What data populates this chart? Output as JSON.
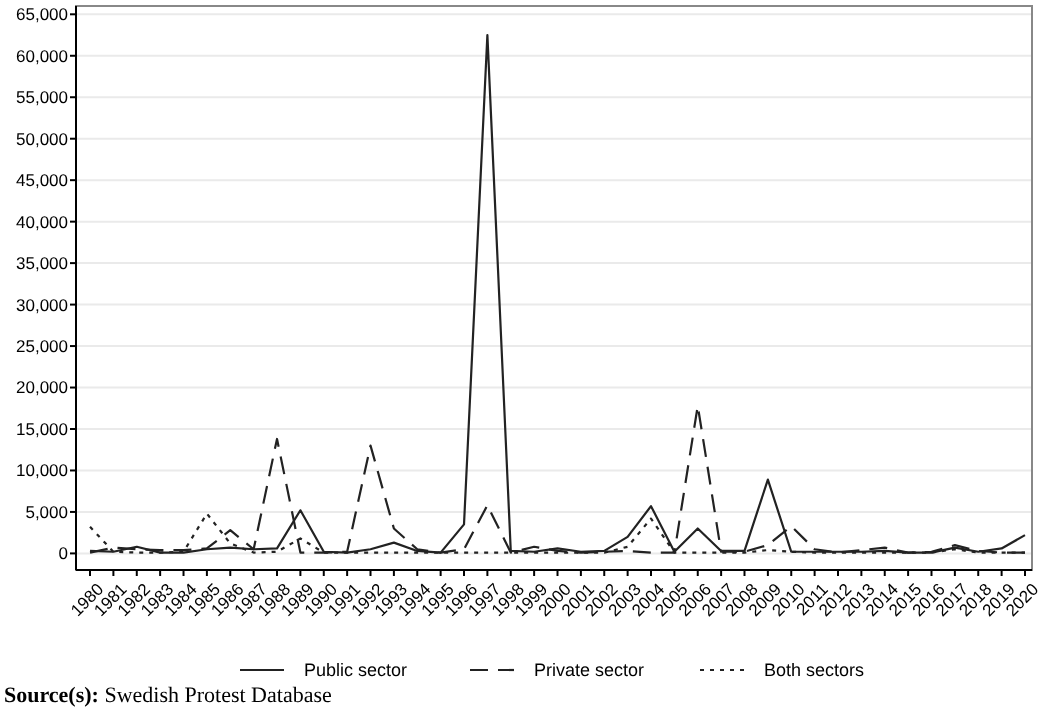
{
  "chart_data": {
    "type": "line",
    "x": [
      1980,
      1981,
      1982,
      1983,
      1984,
      1985,
      1986,
      1987,
      1988,
      1989,
      1990,
      1991,
      1992,
      1993,
      1994,
      1995,
      1996,
      1997,
      1998,
      1999,
      2000,
      2001,
      2002,
      2003,
      2004,
      2005,
      2006,
      2007,
      2008,
      2009,
      2010,
      2011,
      2012,
      2013,
      2014,
      2015,
      2016,
      2017,
      2018,
      2019,
      2020
    ],
    "xlim": [
      1979.4,
      2020.3
    ],
    "xticks": [
      1980,
      1981,
      1982,
      1983,
      1984,
      1985,
      1986,
      1987,
      1988,
      1989,
      1990,
      1991,
      1992,
      1993,
      1994,
      1995,
      1996,
      1997,
      1998,
      1999,
      2000,
      2001,
      2002,
      2003,
      2004,
      2005,
      2006,
      2007,
      2008,
      2009,
      2010,
      2011,
      2012,
      2013,
      2014,
      2015,
      2016,
      2017,
      2018,
      2019,
      2020
    ],
    "ylim": [
      -2000,
      66000
    ],
    "yticks": [
      {
        "value": 0,
        "label": "0"
      },
      {
        "value": 5000,
        "label": "5,000"
      },
      {
        "value": 10000,
        "label": "10,000"
      },
      {
        "value": 15000,
        "label": "15,000"
      },
      {
        "value": 20000,
        "label": "20,000"
      },
      {
        "value": 25000,
        "label": "25,000"
      },
      {
        "value": 30000,
        "label": "30,000"
      },
      {
        "value": 35000,
        "label": "35,000"
      },
      {
        "value": 40000,
        "label": "40,000"
      },
      {
        "value": 45000,
        "label": "45,000"
      },
      {
        "value": 50000,
        "label": "50,000"
      },
      {
        "value": 55000,
        "label": "55,000"
      },
      {
        "value": 60000,
        "label": "60,000"
      },
      {
        "value": 65000,
        "label": "65,000"
      }
    ],
    "grid": "y",
    "legend": "bottom",
    "series": [
      {
        "name": "Public sector",
        "color": "#222222",
        "line_style": "solid",
        "values": [
          300,
          200,
          800,
          100,
          100,
          500,
          700,
          500,
          600,
          5200,
          200,
          100,
          500,
          1300,
          300,
          100,
          3500,
          62500,
          300,
          200,
          600,
          200,
          300,
          2000,
          5700,
          200,
          3000,
          300,
          300,
          8900,
          200,
          200,
          200,
          200,
          300,
          100,
          100,
          700,
          200,
          600,
          2200
        ]
      },
      {
        "name": "Private sector",
        "color": "#222222",
        "line_style": "dashed",
        "values": [
          100,
          700,
          500,
          400,
          400,
          600,
          2800,
          500,
          13800,
          100,
          100,
          200,
          13000,
          3000,
          500,
          100,
          500,
          5800,
          100,
          800,
          300,
          100,
          200,
          300,
          100,
          100,
          17800,
          200,
          200,
          1000,
          3300,
          500,
          100,
          400,
          700,
          100,
          200,
          1000,
          300,
          100,
          100
        ]
      },
      {
        "name": "Both sectors",
        "color": "#222222",
        "line_style": "dotted",
        "values": [
          3200,
          200,
          100,
          100,
          200,
          4800,
          1200,
          100,
          200,
          1800,
          100,
          100,
          100,
          100,
          100,
          100,
          100,
          100,
          100,
          100,
          100,
          100,
          100,
          800,
          4200,
          100,
          100,
          100,
          100,
          400,
          200,
          100,
          100,
          100,
          100,
          100,
          100,
          500,
          100,
          100,
          100
        ]
      }
    ],
    "annotations": [
      "Source(s): Swedish Protest Database"
    ]
  }
}
